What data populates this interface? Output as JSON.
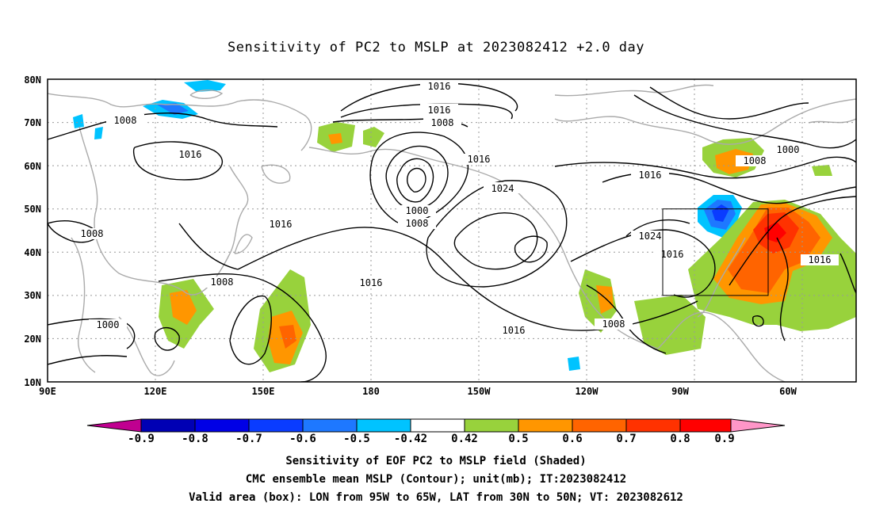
{
  "title": "Sensitivity of PC2 to MSLP at 2023082412 +2.0 day",
  "lat_labels": [
    "80N",
    "70N",
    "60N",
    "50N",
    "40N",
    "30N",
    "20N",
    "10N"
  ],
  "lon_labels": [
    "90E",
    "120E",
    "150E",
    "180",
    "150W",
    "120W",
    "90W",
    "60W"
  ],
  "contour_labels": [
    "1016",
    "1016",
    "1008",
    "1016",
    "1008",
    "1016",
    "1024",
    "1000",
    "1008",
    "1008",
    "1016",
    "1016",
    "1008",
    "1000",
    "1016",
    "1008",
    "1000",
    "1008",
    "1016",
    "1024",
    "1016",
    "1016"
  ],
  "valid_box": {
    "lon_from": "95W",
    "lon_to": "65W",
    "lat_from": "30N",
    "lat_to": "50N"
  },
  "colorbar": {
    "labels": [
      "-0.9",
      "-0.8",
      "-0.7",
      "-0.6",
      "-0.5",
      "-0.42",
      "0.42",
      "0.5",
      "0.6",
      "0.7",
      "0.8",
      "0.9"
    ],
    "colors": {
      "below": "#c00090",
      "bins": [
        "#0000b4",
        "#0000e6",
        "#0a3cff",
        "#1e78ff",
        "#00c3ff",
        "#ffffff",
        "#98d23c",
        "#ff9600",
        "#ff6400",
        "#ff3200",
        "#ff0000"
      ],
      "above": "#ff96c8"
    }
  },
  "captions": {
    "line1": "Sensitivity of EOF PC2 to MSLP field (Shaded)",
    "line2": "CMC ensemble mean MSLP (Contour); unit(mb); IT:2023082412",
    "line3": "Valid area (box): LON from 95W to 65W, LAT from 30N to 50N; VT: 2023082612"
  }
}
